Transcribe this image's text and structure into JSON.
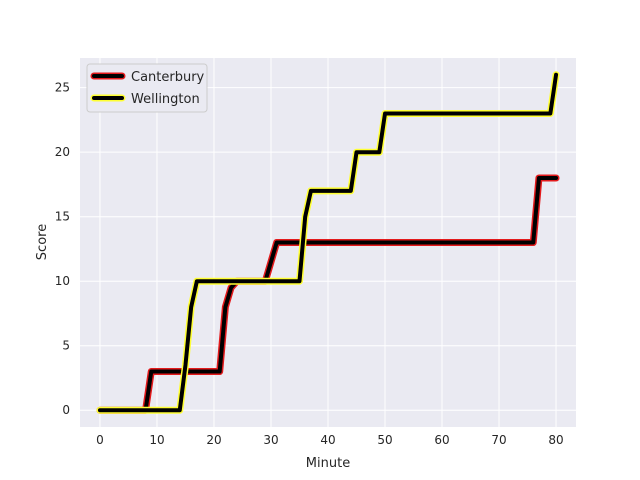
{
  "chart_data": {
    "type": "line",
    "title": "",
    "xlabel": "Minute",
    "ylabel": "Score",
    "xlim": [
      -3.5,
      83.5
    ],
    "ylim": [
      -1.3,
      27.3
    ],
    "xticks": [
      0,
      10,
      20,
      30,
      40,
      50,
      60,
      70,
      80
    ],
    "yticks": [
      0,
      5,
      10,
      15,
      20,
      25
    ],
    "grid": true,
    "background": "#eaeaf2",
    "legend_position": "top-left",
    "series": [
      {
        "name": "Canterbury",
        "line_color": "#000000",
        "edge_color": "#e31a1c",
        "x": [
          0,
          8,
          9,
          21,
          22,
          23,
          24,
          29,
          31,
          76,
          77,
          80
        ],
        "y": [
          0,
          0,
          3,
          3,
          8,
          9.5,
          10,
          10,
          13,
          13,
          18,
          18
        ]
      },
      {
        "name": "Wellington",
        "line_color": "#000000",
        "edge_color": "#ffff33",
        "x": [
          0,
          14,
          15,
          16,
          17,
          35,
          36,
          37,
          44,
          45,
          49,
          50,
          79,
          80
        ],
        "y": [
          0,
          0,
          3.5,
          8,
          10,
          10,
          15,
          17,
          17,
          20,
          20,
          23,
          23,
          26
        ]
      }
    ]
  }
}
